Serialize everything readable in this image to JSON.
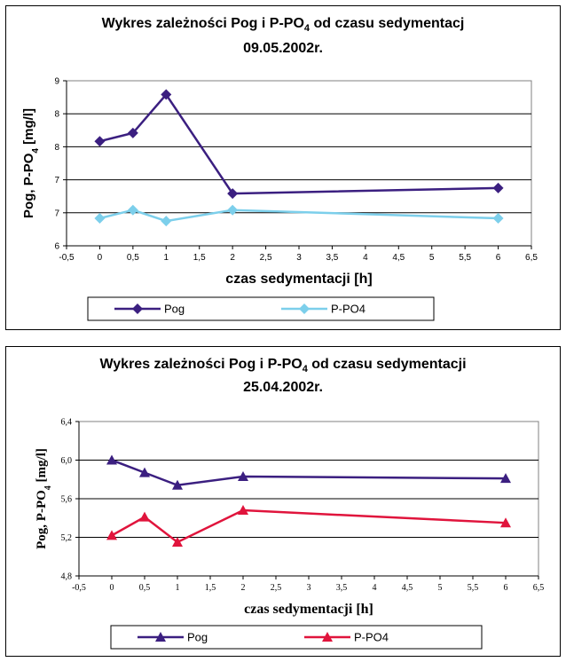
{
  "chart_data": [
    {
      "type": "line",
      "title": "Wykres zależności Pog i P-PO",
      "title_sub": "4",
      "title_end": " od czasu sedymentacj",
      "date": "09.05.2002r.",
      "xlabel": "czas sedymentacji [h]",
      "ylabel_main": "Pog, P-PO",
      "ylabel_sub": "4",
      "ylabel_end": " [mg/l]",
      "x": [
        0,
        0.5,
        1,
        2,
        6
      ],
      "xlim": [
        -0.5,
        6.5
      ],
      "xticks": [
        "-0,5",
        "0",
        "0,5",
        "1",
        "1,5",
        "2",
        "2,5",
        "3",
        "3,5",
        "4",
        "4,5",
        "5",
        "5,5",
        "6",
        "6,5"
      ],
      "ylim": [
        6,
        9
      ],
      "yticks": [
        "6",
        "7",
        "7",
        "8",
        "8",
        "9"
      ],
      "grid": true,
      "legend": "bottom",
      "series": [
        {
          "name": "Pog",
          "values": [
            7.9,
            8.05,
            8.75,
            6.95,
            7.05
          ],
          "color": "#3b1f80",
          "marker": "diamond"
        },
        {
          "name": "P-PO4",
          "values": [
            6.5,
            6.65,
            6.45,
            6.65,
            6.5
          ],
          "color": "#7ccfeb",
          "marker": "diamond"
        }
      ]
    },
    {
      "type": "line",
      "title": "Wykres zależności Pog i P-PO",
      "title_sub": "4",
      "title_end": " od czasu sedymentacji",
      "date": "25.04.2002r.",
      "xlabel": "czas sedymentacji [h]",
      "ylabel_main": "Pog, P-PO",
      "ylabel_sub": "4",
      "ylabel_end": " [mg/l]",
      "x": [
        0,
        0.5,
        1,
        2,
        6
      ],
      "xlim": [
        -0.5,
        6.5
      ],
      "xticks": [
        "-0,5",
        "0",
        "0,5",
        "1",
        "1,5",
        "2",
        "2,5",
        "3",
        "3,5",
        "4",
        "4,5",
        "5",
        "5,5",
        "6",
        "6,5"
      ],
      "ylim": [
        4.8,
        6.4
      ],
      "yticks": [
        "4,8",
        "5,2",
        "5,6",
        "6,0",
        "6,4"
      ],
      "grid": true,
      "legend": "bottom",
      "series": [
        {
          "name": "Pog",
          "values": [
            6.0,
            5.87,
            5.74,
            5.83,
            5.81
          ],
          "color": "#3b1f80",
          "marker": "triangle"
        },
        {
          "name": "P-PO4",
          "values": [
            5.22,
            5.41,
            5.15,
            5.48,
            5.35
          ],
          "color": "#e0143c",
          "marker": "triangle"
        }
      ]
    }
  ]
}
